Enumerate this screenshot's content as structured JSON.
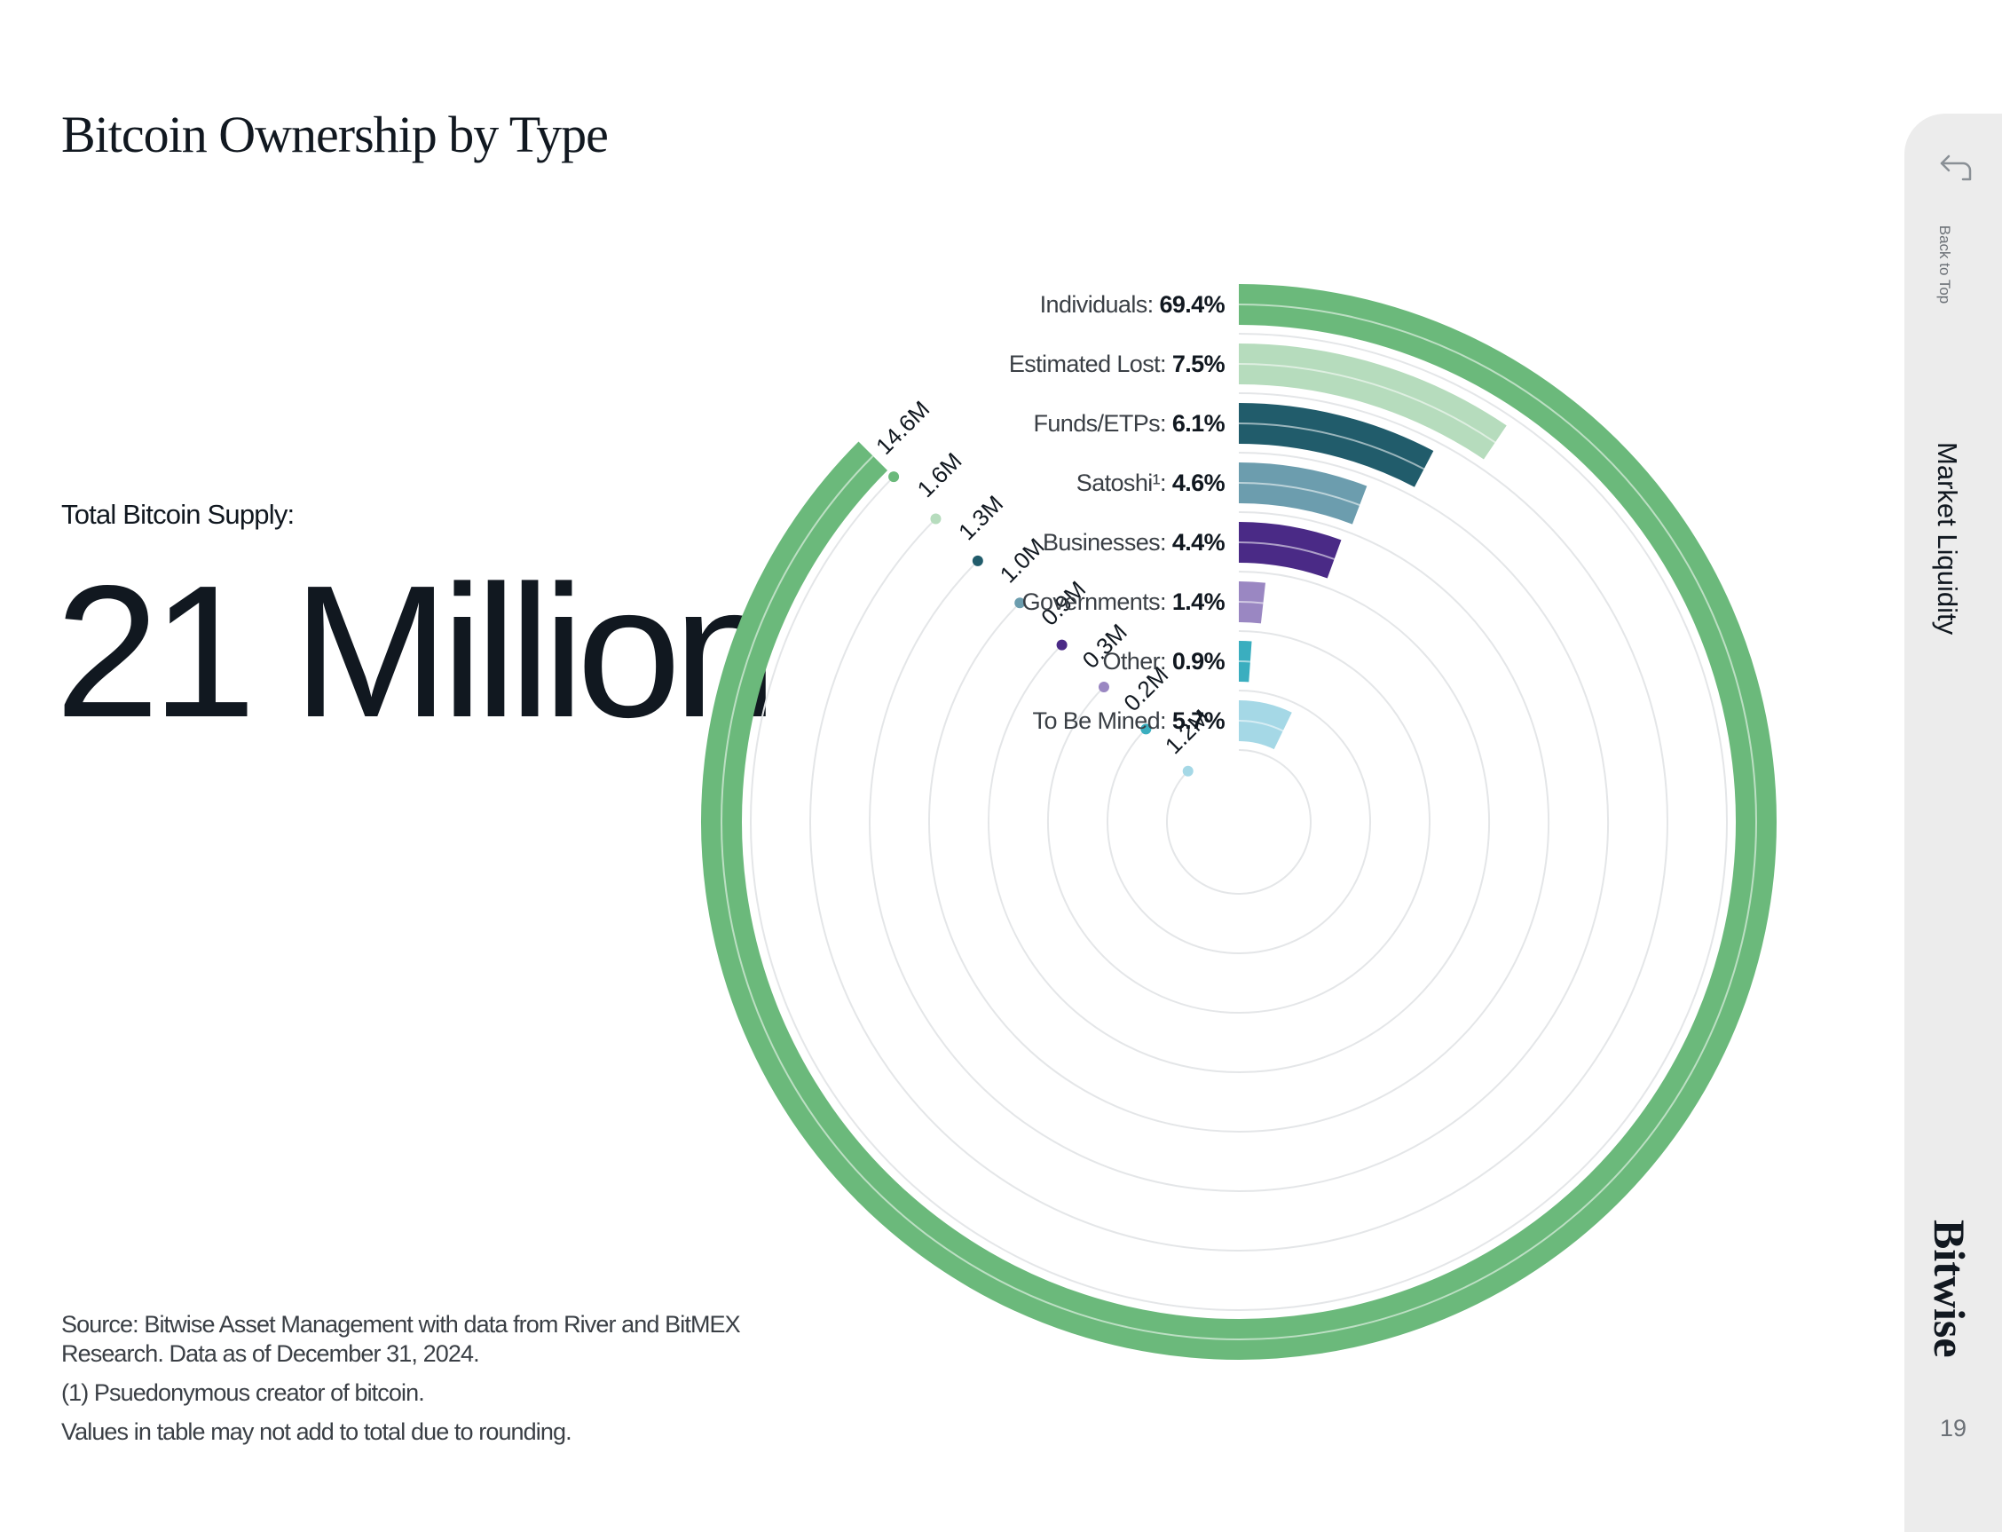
{
  "page": {
    "title": "Bitcoin Ownership by Type",
    "supply_label": "Total Bitcoin Supply:",
    "supply_value": "21 Million",
    "notes": {
      "source": "Source: Bitwise Asset Management with data from River and BitMEX Research. Data as of December 31, 2024.",
      "footnote": "(1) Psuedonymous creator of bitcoin.",
      "rounding": "Values in table may not add to total due to rounding."
    }
  },
  "sidebar": {
    "back_label": "Back to Top",
    "section": "Market Liquidity",
    "brand": "Bitwise",
    "page_number": "19",
    "back_icon": "back-arrow-icon"
  },
  "chart_data": {
    "type": "radial-bar",
    "title": "Bitcoin Ownership by Type",
    "total": "21 Million",
    "series": [
      {
        "name": "Individuals",
        "label": "Individuals: ",
        "percent": 69.4,
        "percent_label": "69.4%",
        "amount_label": "14.6M",
        "color": "#6bb97b"
      },
      {
        "name": "Estimated Lost",
        "label": "Estimated Lost: ",
        "percent": 7.5,
        "percent_label": "7.5%",
        "amount_label": "1.6M",
        "color": "#b6dcbd"
      },
      {
        "name": "Funds/ETPs",
        "label": "Funds/ETPs: ",
        "percent": 6.1,
        "percent_label": "6.1%",
        "amount_label": "1.3M",
        "color": "#215c6b"
      },
      {
        "name": "Satoshi",
        "label": "Satoshi¹: ",
        "percent": 4.6,
        "percent_label": "4.6%",
        "amount_label": "1.0M",
        "color": "#6c9dae"
      },
      {
        "name": "Businesses",
        "label": "Businesses: ",
        "percent": 4.4,
        "percent_label": "4.4%",
        "amount_label": "0.9M",
        "color": "#4a2a86"
      },
      {
        "name": "Governments",
        "label": "Governments: ",
        "percent": 1.4,
        "percent_label": "1.4%",
        "amount_label": "0.3M",
        "color": "#9a87c2"
      },
      {
        "name": "Other",
        "label": "Other: ",
        "percent": 0.9,
        "percent_label": "0.9%",
        "amount_label": "0.2M",
        "color": "#3aaebf"
      },
      {
        "name": "To Be Mined",
        "label": "To Be Mined: ",
        "percent": 5.7,
        "percent_label": "5.7%",
        "amount_label": "1.2M",
        "color": "#a5d8e6"
      }
    ],
    "scale_max_percent": 69.4,
    "scale_span_degrees": 315
  }
}
